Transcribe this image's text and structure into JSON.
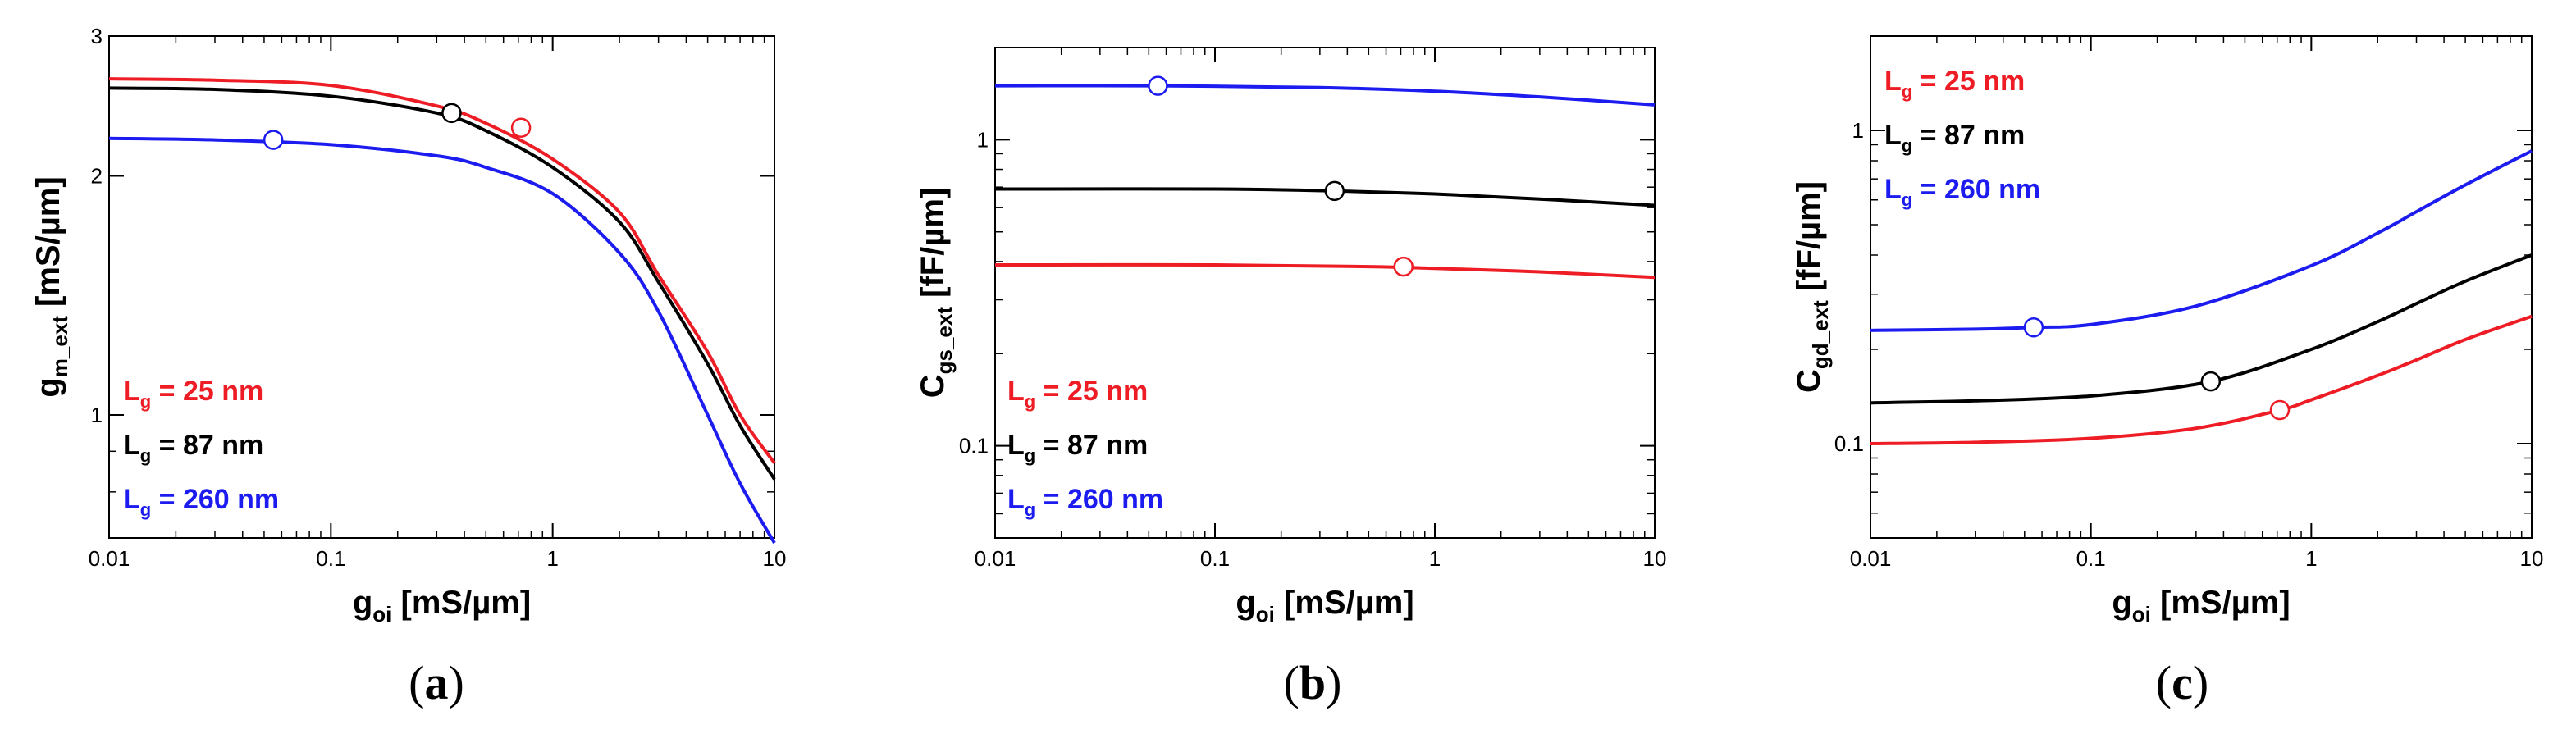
{
  "chart_data": [
    {
      "type": "line",
      "panel": "a",
      "xscale": "log",
      "yscale": "log",
      "xlim": [
        0.01,
        10
      ],
      "ylim": [
        0.7,
        3
      ],
      "xticks": [
        0.01,
        0.1,
        1,
        10
      ],
      "xtick_labels": [
        "0.01",
        "0.1",
        "1",
        "10"
      ],
      "yticks": [
        1,
        2,
        3
      ],
      "ytick_labels": [
        "1",
        "2",
        "3"
      ],
      "xlabel": {
        "main": "g",
        "sub": "oi",
        "unit": "[mS/µm]"
      },
      "ylabel": {
        "main": "g",
        "sub": "m_ext",
        "unit": "[mS/µm]"
      },
      "legend_position": "bottom-left",
      "series": [
        {
          "name": "Lg = 25 nm",
          "label_main": "L",
          "label_sub": "g",
          "label_value": "= 25 nm",
          "color": "#ee1c24",
          "x": [
            0.01,
            0.03,
            0.1,
            0.3,
            0.5,
            1,
            2,
            3,
            5,
            7,
            10
          ],
          "y": [
            2.65,
            2.64,
            2.6,
            2.45,
            2.33,
            2.1,
            1.8,
            1.5,
            1.2,
            1.0,
            0.87
          ],
          "marker": {
            "x": 0.72,
            "y": 2.3
          }
        },
        {
          "name": "Lg = 87 nm",
          "label_main": "L",
          "label_sub": "g",
          "label_value": "= 87 nm",
          "color": "#000000",
          "x": [
            0.01,
            0.03,
            0.1,
            0.3,
            0.5,
            1,
            2,
            3,
            5,
            7,
            10
          ],
          "y": [
            2.58,
            2.57,
            2.52,
            2.4,
            2.28,
            2.05,
            1.75,
            1.47,
            1.16,
            0.97,
            0.83
          ],
          "marker": {
            "x": 0.35,
            "y": 2.4
          }
        },
        {
          "name": "Lg = 260 nm",
          "label_main": "L",
          "label_sub": "g",
          "label_value": "= 260 nm",
          "color": "#1c1cf0",
          "x": [
            0.01,
            0.03,
            0.1,
            0.3,
            0.5,
            1,
            2,
            3,
            5,
            7,
            10
          ],
          "y": [
            2.23,
            2.22,
            2.19,
            2.12,
            2.05,
            1.9,
            1.6,
            1.35,
            1.0,
            0.82,
            0.69
          ],
          "marker": {
            "x": 0.055,
            "y": 2.22
          }
        }
      ]
    },
    {
      "type": "line",
      "panel": "b",
      "xscale": "log",
      "yscale": "log",
      "xlim": [
        0.01,
        10
      ],
      "ylim": [
        0.05,
        2
      ],
      "xticks": [
        0.01,
        0.1,
        1,
        10
      ],
      "xtick_labels": [
        "0.01",
        "0.1",
        "1",
        "10"
      ],
      "yticks": [
        0.1,
        1
      ],
      "ytick_labels": [
        "0.1",
        "1"
      ],
      "xlabel": {
        "main": "g",
        "sub": "oi",
        "unit": "[mS/µm]"
      },
      "ylabel": {
        "main": "C",
        "sub": "gs_ext",
        "unit": "[fF/µm]"
      },
      "legend_position": "bottom-left",
      "series": [
        {
          "name": "Lg = 25 nm",
          "label_main": "L",
          "label_sub": "g",
          "label_value": "= 25 nm",
          "color": "#ee1c24",
          "x": [
            0.01,
            0.1,
            0.5,
            1,
            3,
            10
          ],
          "y": [
            0.39,
            0.39,
            0.385,
            0.38,
            0.37,
            0.355
          ],
          "marker": {
            "x": 0.72,
            "y": 0.385
          }
        },
        {
          "name": "Lg = 87 nm",
          "label_main": "L",
          "label_sub": "g",
          "label_value": "= 87 nm",
          "color": "#000000",
          "x": [
            0.01,
            0.1,
            0.35,
            1,
            3,
            10
          ],
          "y": [
            0.69,
            0.69,
            0.68,
            0.665,
            0.64,
            0.61
          ],
          "marker": {
            "x": 0.35,
            "y": 0.68
          }
        },
        {
          "name": "Lg = 260 nm",
          "label_main": "L",
          "label_sub": "g",
          "label_value": "= 260 nm",
          "color": "#1c1cf0",
          "x": [
            0.01,
            0.055,
            0.3,
            1,
            3,
            10
          ],
          "y": [
            1.5,
            1.5,
            1.48,
            1.44,
            1.38,
            1.3
          ],
          "marker": {
            "x": 0.055,
            "y": 1.5
          }
        }
      ]
    },
    {
      "type": "line",
      "panel": "c",
      "xscale": "log",
      "yscale": "log",
      "xlim": [
        0.01,
        10
      ],
      "ylim": [
        0.05,
        2
      ],
      "xticks": [
        0.01,
        0.1,
        1,
        10
      ],
      "xtick_labels": [
        "0.01",
        "0.1",
        "1",
        "10"
      ],
      "yticks": [
        0.1,
        1
      ],
      "ytick_labels": [
        "0.1",
        "1"
      ],
      "xlabel": {
        "main": "g",
        "sub": "oi",
        "unit": "[mS/µm]"
      },
      "ylabel": {
        "main": "C",
        "sub": "gd_ext",
        "unit": "[fF/µm]"
      },
      "legend_position": "top-left",
      "series": [
        {
          "name": "Lg = 25 nm",
          "label_main": "L",
          "label_sub": "g",
          "label_value": "= 25 nm",
          "color": "#ee1c24",
          "x": [
            0.01,
            0.03,
            0.1,
            0.3,
            0.72,
            1,
            2,
            3,
            5,
            10
          ],
          "y": [
            0.1,
            0.101,
            0.104,
            0.112,
            0.128,
            0.138,
            0.165,
            0.185,
            0.215,
            0.255
          ],
          "marker": {
            "x": 0.72,
            "y": 0.128
          }
        },
        {
          "name": "Lg = 87 nm",
          "label_main": "L",
          "label_sub": "g",
          "label_value": "= 87 nm",
          "color": "#000000",
          "x": [
            0.01,
            0.03,
            0.1,
            0.35,
            1,
            2,
            3,
            5,
            10
          ],
          "y": [
            0.135,
            0.137,
            0.142,
            0.158,
            0.2,
            0.245,
            0.28,
            0.33,
            0.4
          ],
          "marker": {
            "x": 0.35,
            "y": 0.158
          }
        },
        {
          "name": "Lg = 260 nm",
          "label_main": "L",
          "label_sub": "g",
          "label_value": "= 260 nm",
          "color": "#1c1cf0",
          "x": [
            0.01,
            0.03,
            0.055,
            0.1,
            0.3,
            1,
            2,
            3,
            5,
            10
          ],
          "y": [
            0.23,
            0.232,
            0.235,
            0.24,
            0.275,
            0.37,
            0.47,
            0.55,
            0.67,
            0.86
          ],
          "marker": {
            "x": 0.055,
            "y": 0.235
          }
        }
      ]
    }
  ],
  "captions": [
    {
      "open": "(",
      "letter": "a",
      "close": ")"
    },
    {
      "open": "(",
      "letter": "b",
      "close": ")"
    },
    {
      "open": "(",
      "letter": "c",
      "close": ")"
    }
  ]
}
